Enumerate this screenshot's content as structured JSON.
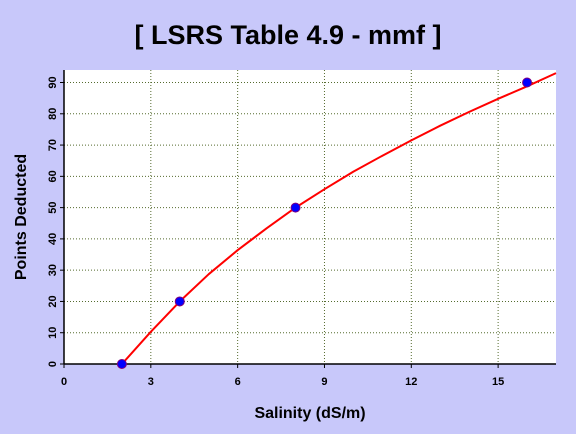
{
  "chart_data": {
    "type": "scatter",
    "title": "[ LSRS Table 4.9 - mmf ]",
    "xlabel": "Salinity (dS/m)",
    "ylabel": "Points Deducted",
    "xlim": [
      0,
      17
    ],
    "ylim": [
      0,
      94
    ],
    "x_ticks": [
      "0",
      "3",
      "6",
      "9",
      "12",
      "15"
    ],
    "x_tick_values": [
      0,
      3,
      6,
      9,
      12,
      15
    ],
    "y_ticks": [
      "0",
      "10",
      "20",
      "30",
      "40",
      "50",
      "60",
      "70",
      "80",
      "90"
    ],
    "y_tick_values": [
      0,
      10,
      20,
      30,
      40,
      50,
      60,
      70,
      80,
      90
    ],
    "grid": true,
    "series": [
      {
        "x": [
          2,
          4,
          8,
          16
        ],
        "y": [
          0,
          20,
          50,
          90
        ],
        "marker_color": "#0000ff",
        "marker_edge_color": "#800080"
      }
    ],
    "fit_curve": {
      "type": "curve",
      "x": [
        2,
        3,
        4,
        5,
        6,
        7,
        8,
        9,
        10,
        11,
        12,
        13,
        14,
        15,
        16,
        17
      ],
      "y": [
        0,
        10.3,
        20,
        28.7,
        36.4,
        43.4,
        50,
        55.9,
        61.5,
        66.6,
        71.5,
        76.2,
        80.6,
        84.8,
        88.8,
        93.0
      ],
      "color": "#ff0000"
    },
    "background_color": "#c8c8fa",
    "plot_background_color": "#ffffff",
    "grid_color": "#556b2f"
  }
}
